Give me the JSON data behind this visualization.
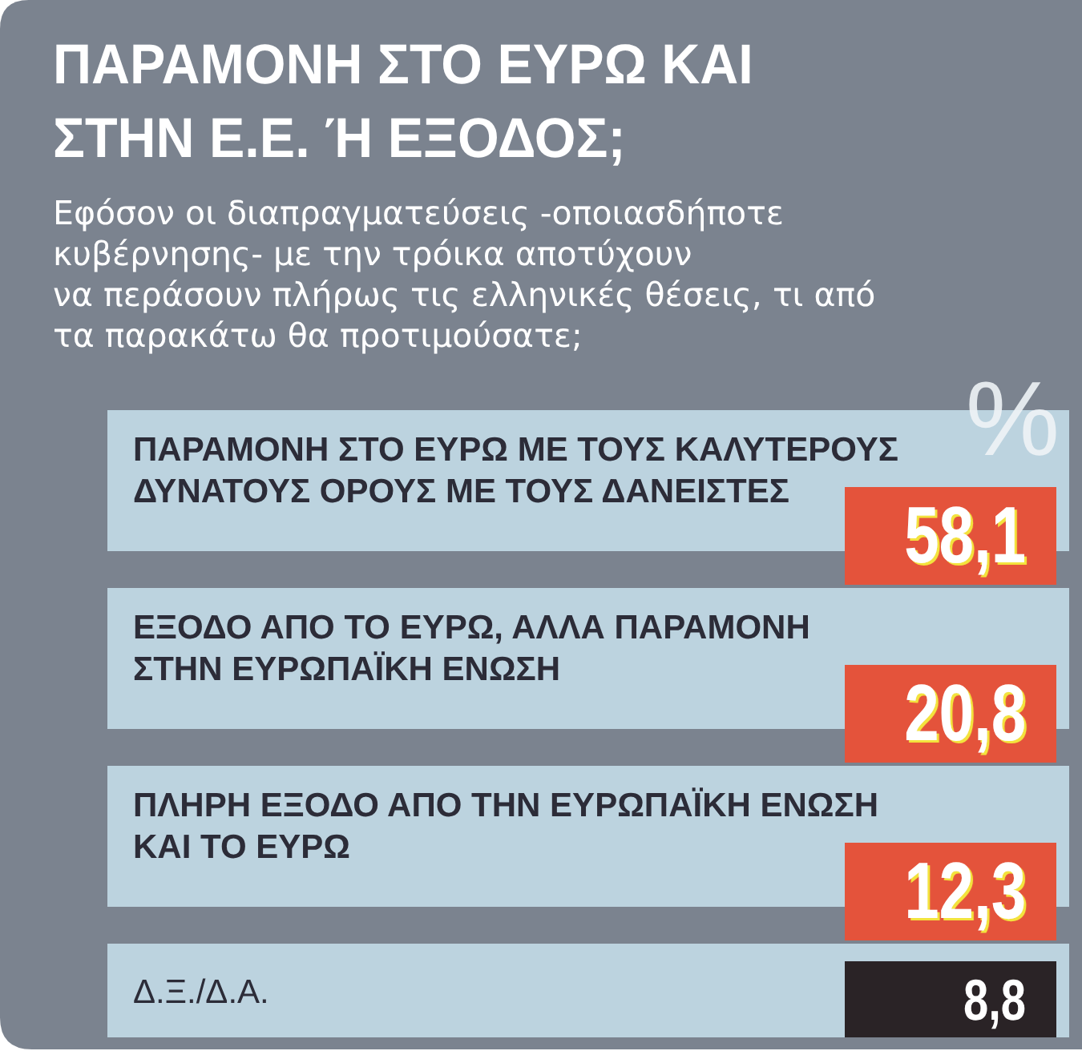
{
  "chart_data": {
    "type": "other",
    "title": "ΠΑΡΑΜΟΝΗ ΣΤΟ ΕΥΡΩ ΚΑΙ\nΣΤΗΝ Ε.Ε. Ή ΕΞΟΔΟΣ;",
    "subtitle": "Εφόσον οι διαπραγματεύσεις -οποιασδήποτε\nκυβέρνησης- με την τρόικα αποτύχουν\nνα περάσουν πλήρως τις ελληνικές θέσεις, τι από\nτα παρακάτω θα προτιμούσατε;",
    "categories": [
      "ΠΑΡΑΜΟΝΗ ΣΤΟ ΕΥΡΩ ΜΕ ΤΟΥΣ ΚΑΛΥΤΕΡΟΥΣ\nΔΥΝΑΤΟΥΣ ΟΡΟΥΣ ΜΕ ΤΟΥΣ ΔΑΝΕΙΣΤΕΣ",
      "ΕΞΟΔΟ ΑΠΟ ΤΟ ΕΥΡΩ, ΑΛΛΑ ΠΑΡΑΜΟΝΗ\nΣΤΗΝ ΕΥΡΩΠΑΪΚΗ ΕΝΩΣΗ",
      "ΠΛΗΡΗ ΕΞΟΔΟ ΑΠΟ ΤΗΝ ΕΥΡΩΠΑΪΚΗ ΕΝΩΣΗ\nΚΑΙ ΤΟ ΕΥΡΩ",
      "Δ.Ξ./Δ.Α."
    ],
    "values": [
      58.1,
      20.8,
      12.3,
      8.8
    ],
    "value_labels": [
      "58,1",
      "20,8",
      "12,3",
      "8,8"
    ],
    "colors": [
      "#e4533b",
      "#e4533b",
      "#e4533b",
      "#2a2326"
    ],
    "annotations": [
      "%"
    ]
  }
}
